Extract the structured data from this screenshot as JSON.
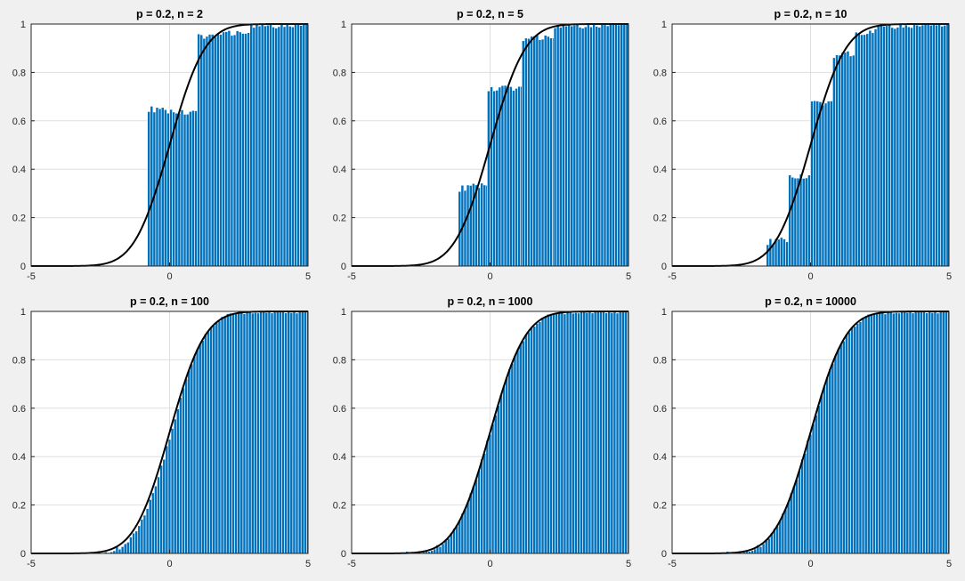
{
  "colors": {
    "figure_background": "#f0f0f0",
    "axes_background": "#ffffff",
    "bar_fill": "#0072bd",
    "bar_edge": "#ffffff",
    "curve": "#000000",
    "grid": "#dfdfdf",
    "axes_box": "#262626"
  },
  "chart_data": [
    {
      "type": "bar",
      "title": "p = 0.2, n = 2",
      "xlim": [
        -5,
        5
      ],
      "ylim": [
        0,
        1
      ],
      "xticks": [
        "-5",
        "0",
        "5"
      ],
      "yticks": [
        "0",
        "0.2",
        "0.4",
        "0.6",
        "0.8",
        "1"
      ],
      "grid": true,
      "bar_width": 0.1,
      "segments": [
        {
          "x_start": -0.75,
          "x_end": 0.95,
          "y_start": 0.65,
          "y_end": 0.63
        },
        {
          "x_start": 1.05,
          "x_end": 2.85,
          "y_start": 0.95,
          "y_end": 0.97
        },
        {
          "x_start": 2.95,
          "x_end": 5.0,
          "y_start": 0.99,
          "y_end": 1.0
        }
      ],
      "series": [
        {
          "type": "line",
          "function": "normal_cdf",
          "mean": 0,
          "sd": 1
        }
      ]
    },
    {
      "type": "bar",
      "title": "p = 0.2, n = 5",
      "xlim": [
        -5,
        5
      ],
      "ylim": [
        0,
        1
      ],
      "xticks": [
        "-5",
        "0",
        "5"
      ],
      "yticks": [
        "0",
        "0.2",
        "0.4",
        "0.6",
        "0.8",
        "1"
      ],
      "grid": true,
      "bar_width": 0.1,
      "segments": [
        {
          "x_start": -1.1,
          "x_end": -0.15,
          "y_start": 0.32,
          "y_end": 0.34
        },
        {
          "x_start": -0.05,
          "x_end": 1.1,
          "y_start": 0.73,
          "y_end": 0.74
        },
        {
          "x_start": 1.2,
          "x_end": 2.25,
          "y_start": 0.94,
          "y_end": 0.95
        },
        {
          "x_start": 2.35,
          "x_end": 5.0,
          "y_start": 0.99,
          "y_end": 1.0
        }
      ],
      "series": [
        {
          "type": "line",
          "function": "normal_cdf",
          "mean": 0,
          "sd": 1
        }
      ]
    },
    {
      "type": "bar",
      "title": "p = 0.2, n = 10",
      "xlim": [
        -5,
        5
      ],
      "ylim": [
        0,
        1
      ],
      "xticks": [
        "-5",
        "0",
        "5"
      ],
      "yticks": [
        "0",
        "0.2",
        "0.4",
        "0.6",
        "0.8",
        "1"
      ],
      "grid": true,
      "bar_width": 0.1,
      "segments": [
        {
          "x_start": -1.55,
          "x_end": -0.85,
          "y_start": 0.1,
          "y_end": 0.11
        },
        {
          "x_start": -0.75,
          "x_end": -0.05,
          "y_start": 0.37,
          "y_end": 0.37
        },
        {
          "x_start": 0.05,
          "x_end": 0.75,
          "y_start": 0.67,
          "y_end": 0.68
        },
        {
          "x_start": 0.85,
          "x_end": 1.55,
          "y_start": 0.87,
          "y_end": 0.88
        },
        {
          "x_start": 1.65,
          "x_end": 2.35,
          "y_start": 0.96,
          "y_end": 0.97
        },
        {
          "x_start": 2.45,
          "x_end": 5.0,
          "y_start": 0.99,
          "y_end": 1.0
        }
      ],
      "series": [
        {
          "type": "line",
          "function": "normal_cdf",
          "mean": 0,
          "sd": 1
        }
      ]
    },
    {
      "type": "bar",
      "title": "p = 0.2, n = 100",
      "xlim": [
        -5,
        5
      ],
      "ylim": [
        0,
        1
      ],
      "xticks": [
        "-5",
        "0",
        "5"
      ],
      "yticks": [
        "0",
        "0.2",
        "0.4",
        "0.6",
        "0.8",
        "1"
      ],
      "grid": true,
      "bar_width": 0.1,
      "start_x": -2.6,
      "model": "normal_cdf",
      "mean": 0.05,
      "sd": 0.95,
      "series": [
        {
          "type": "line",
          "function": "normal_cdf",
          "mean": 0,
          "sd": 1
        }
      ]
    },
    {
      "type": "bar",
      "title": "p = 0.2, n = 1000",
      "xlim": [
        -5,
        5
      ],
      "ylim": [
        0,
        1
      ],
      "xticks": [
        "-5",
        "0",
        "5"
      ],
      "yticks": [
        "0",
        "0.2",
        "0.4",
        "0.6",
        "0.8",
        "1"
      ],
      "grid": true,
      "bar_width": 0.1,
      "start_x": -3.0,
      "model": "normal_cdf",
      "mean": 0.0,
      "sd": 1.0,
      "series": [
        {
          "type": "line",
          "function": "normal_cdf",
          "mean": 0,
          "sd": 1
        }
      ]
    },
    {
      "type": "bar",
      "title": "p = 0.2, n = 10000",
      "xlim": [
        -5,
        5
      ],
      "ylim": [
        0,
        1
      ],
      "xticks": [
        "-5",
        "0",
        "5"
      ],
      "yticks": [
        "0",
        "0.2",
        "0.4",
        "0.6",
        "0.8",
        "1"
      ],
      "grid": true,
      "bar_width": 0.1,
      "start_x": -3.0,
      "model": "normal_cdf",
      "mean": 0.0,
      "sd": 1.0,
      "series": [
        {
          "type": "line",
          "function": "normal_cdf",
          "mean": 0,
          "sd": 1
        }
      ]
    }
  ]
}
